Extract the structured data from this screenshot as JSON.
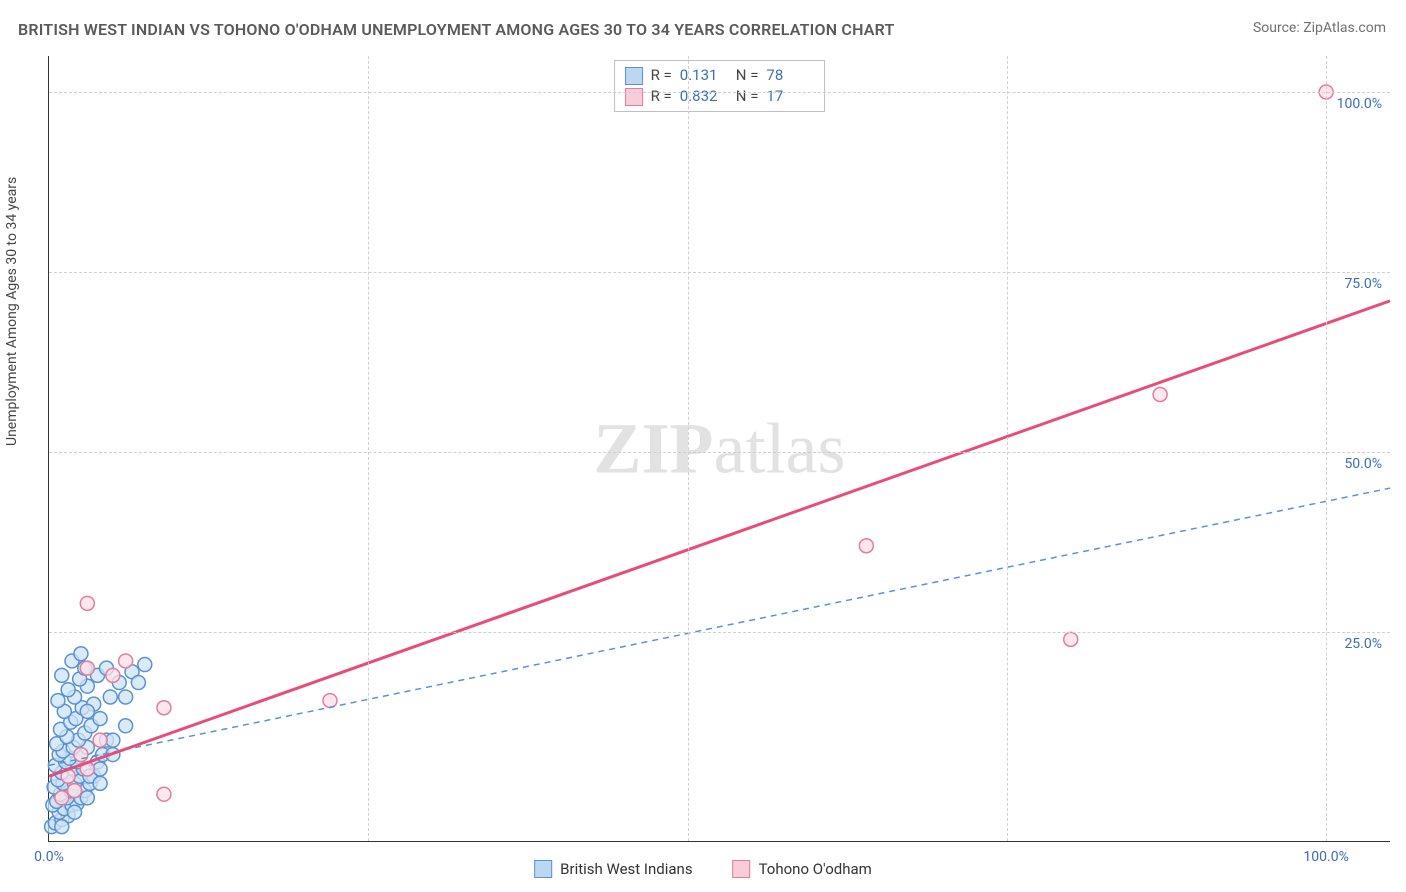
{
  "title": "BRITISH WEST INDIAN VS TOHONO O'ODHAM UNEMPLOYMENT AMONG AGES 30 TO 34 YEARS CORRELATION CHART",
  "source": "Source: ZipAtlas.com",
  "watermark_main": "ZIP",
  "watermark_sub": "atlas",
  "y_axis_label": "Unemployment Among Ages 30 to 34 years",
  "stats": {
    "r_label": "R =",
    "n_label": "N =",
    "series1": {
      "r": "0.131",
      "n": "78"
    },
    "series2": {
      "r": "0.832",
      "n": "17"
    }
  },
  "legend": {
    "series1": "British West Indians",
    "series2": "Tohono O'odham"
  },
  "x_ticks": [
    "0.0%",
    "100.0%"
  ],
  "y_ticks": [
    "25.0%",
    "50.0%",
    "75.0%",
    "100.0%"
  ],
  "chart": {
    "type": "scatter",
    "xlim": [
      0,
      105
    ],
    "ylim": [
      -4,
      105
    ],
    "grid_positions_pct": [
      25,
      50,
      75,
      100
    ],
    "background_color": "#ffffff",
    "grid_color": "#d0d0d0",
    "axis_color": "#333333",
    "label_color_blue": "#3b6fb6",
    "title_fontsize": 16,
    "label_fontsize": 14,
    "tick_fontsize": 14,
    "marker_radius": 7,
    "marker_stroke_width": 1.5,
    "series": [
      {
        "name": "British West Indians",
        "fill": "#cfe3f7",
        "stroke": "#5a93d0",
        "swatch_fill": "#bcd7f2",
        "swatch_border": "#5a93d0",
        "trend": {
          "x1": 0,
          "y1": 6.5,
          "x2": 105,
          "y2": 45,
          "dash": "6,5",
          "width": 1.5,
          "color": "#5a93d0"
        },
        "points": [
          [
            0.2,
            -2
          ],
          [
            0.5,
            -1.5
          ],
          [
            1,
            -1
          ],
          [
            1.5,
            -0.5
          ],
          [
            0.8,
            0
          ],
          [
            1.2,
            0.5
          ],
          [
            0.3,
            1
          ],
          [
            1.8,
            1
          ],
          [
            2.2,
            1.2
          ],
          [
            0.6,
            1.5
          ],
          [
            1.4,
            2
          ],
          [
            2.5,
            2
          ],
          [
            0.9,
            2.5
          ],
          [
            1.7,
            3
          ],
          [
            2.8,
            3
          ],
          [
            0.4,
            3.5
          ],
          [
            1.1,
            4
          ],
          [
            2.0,
            4
          ],
          [
            3.2,
            4
          ],
          [
            0.7,
            4.5
          ],
          [
            1.5,
            5
          ],
          [
            2.4,
            5
          ],
          [
            3.5,
            5
          ],
          [
            1.0,
            5.5
          ],
          [
            1.9,
            6
          ],
          [
            2.7,
            6
          ],
          [
            0.5,
            6.5
          ],
          [
            1.3,
            7
          ],
          [
            2.2,
            7
          ],
          [
            3.8,
            7
          ],
          [
            1.6,
            7.5
          ],
          [
            0.8,
            8
          ],
          [
            2.5,
            8
          ],
          [
            4.2,
            8
          ],
          [
            1.1,
            8.5
          ],
          [
            1.9,
            9
          ],
          [
            3.0,
            9
          ],
          [
            0.6,
            9.5
          ],
          [
            2.3,
            10
          ],
          [
            4.5,
            10
          ],
          [
            1.4,
            10.5
          ],
          [
            2.8,
            11
          ],
          [
            0.9,
            11.5
          ],
          [
            3.3,
            12
          ],
          [
            1.7,
            12.5
          ],
          [
            2.1,
            13
          ],
          [
            4.0,
            13
          ],
          [
            1.2,
            14
          ],
          [
            2.6,
            14.5
          ],
          [
            3.5,
            15
          ],
          [
            0.7,
            15.5
          ],
          [
            2.0,
            16
          ],
          [
            4.8,
            16
          ],
          [
            1.5,
            17
          ],
          [
            3.0,
            17.5
          ],
          [
            5.5,
            18
          ],
          [
            2.4,
            18.5
          ],
          [
            1.0,
            19
          ],
          [
            3.8,
            19
          ],
          [
            6.5,
            19.5
          ],
          [
            2.8,
            20
          ],
          [
            4.5,
            20
          ],
          [
            7.5,
            20.5
          ],
          [
            1.8,
            21
          ],
          [
            3.2,
            5
          ],
          [
            2.0,
            3
          ],
          [
            5,
            10
          ],
          [
            4,
            6
          ],
          [
            3,
            2
          ],
          [
            6,
            12
          ],
          [
            2,
            0
          ],
          [
            1,
            -2
          ],
          [
            4,
            4
          ],
          [
            5,
            8
          ],
          [
            3,
            14
          ],
          [
            6,
            16
          ],
          [
            7,
            18
          ],
          [
            2.5,
            22
          ]
        ]
      },
      {
        "name": "Tohono O'odham",
        "fill": "#fbe0e7",
        "stroke": "#e87b9a",
        "swatch_fill": "#f8cdd9",
        "swatch_border": "#e87b9a",
        "trend": {
          "x1": 0,
          "y1": 5,
          "x2": 105,
          "y2": 71,
          "dash": "",
          "width": 3,
          "color": "#e64e78"
        },
        "points": [
          [
            1,
            2
          ],
          [
            2,
            3
          ],
          [
            1.5,
            5
          ],
          [
            3,
            6
          ],
          [
            2.5,
            8
          ],
          [
            4,
            10
          ],
          [
            9,
            14.5
          ],
          [
            5,
            19
          ],
          [
            3,
            20
          ],
          [
            6,
            21
          ],
          [
            3,
            29
          ],
          [
            22,
            15.5
          ],
          [
            9,
            2.5
          ],
          [
            64,
            37
          ],
          [
            80,
            24
          ],
          [
            87,
            58
          ],
          [
            100,
            100
          ]
        ]
      }
    ]
  }
}
